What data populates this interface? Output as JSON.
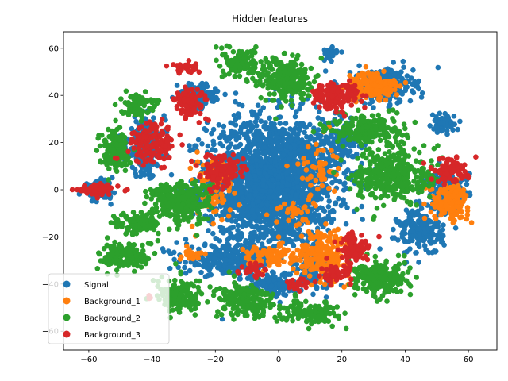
{
  "chart_data": {
    "type": "scatter",
    "title": "Hidden features",
    "xlabel": "",
    "ylabel": "",
    "xlim": [
      -68,
      69
    ],
    "ylim": [
      -68,
      67
    ],
    "xticks": [
      -60,
      -40,
      -20,
      0,
      20,
      40,
      60
    ],
    "yticks": [
      -60,
      -40,
      -20,
      0,
      20,
      40,
      60
    ],
    "grid": false,
    "legend_position": "lower-left",
    "series": [
      {
        "name": "Signal",
        "color": "#1f77b4",
        "clusters": [
          [
            -2,
            3,
            17,
            23,
            2200
          ],
          [
            33,
            44,
            8,
            6,
            280
          ],
          [
            -26,
            40,
            5,
            4,
            120
          ],
          [
            -42,
            18,
            5,
            10,
            220
          ],
          [
            -57,
            0,
            4,
            3,
            100
          ],
          [
            -15,
            -30,
            12,
            5,
            260
          ],
          [
            20,
            20,
            4,
            7,
            110
          ],
          [
            12,
            -33,
            5,
            6,
            120
          ],
          [
            -2,
            -40,
            6,
            4,
            120
          ],
          [
            45,
            -18,
            6,
            8,
            180
          ],
          [
            53,
            0,
            6,
            7,
            170
          ],
          [
            52,
            28,
            3,
            3,
            60
          ],
          [
            16,
            58,
            2,
            2,
            40
          ]
        ]
      },
      {
        "name": "Background_1",
        "color": "#ff7f0e",
        "clusters": [
          [
            30,
            44,
            7,
            5,
            170
          ],
          [
            54,
            -5,
            5,
            6,
            150
          ],
          [
            14,
            -27,
            7,
            8,
            220
          ],
          [
            -3,
            -28,
            7,
            4,
            90
          ],
          [
            -20,
            0,
            6,
            14,
            70
          ],
          [
            12,
            10,
            5,
            10,
            50
          ],
          [
            -28,
            -28,
            4,
            3,
            20
          ],
          [
            5,
            -10,
            5,
            5,
            30
          ]
        ]
      },
      {
        "name": "Background_2",
        "color": "#2ca02c",
        "clusters": [
          [
            -12,
            54,
            4,
            5,
            150
          ],
          [
            2,
            47,
            7,
            8,
            250
          ],
          [
            -45,
            36,
            4,
            4,
            90
          ],
          [
            -52,
            17,
            4,
            7,
            140
          ],
          [
            -37,
            -2,
            4,
            3,
            40
          ],
          [
            -30,
            -5,
            7,
            7,
            300
          ],
          [
            -45,
            -14,
            6,
            4,
            120
          ],
          [
            -48,
            -28,
            7,
            5,
            150
          ],
          [
            -31,
            -45,
            6,
            6,
            150
          ],
          [
            -10,
            -47,
            8,
            6,
            200
          ],
          [
            10,
            -52,
            7,
            4,
            120
          ],
          [
            32,
            -38,
            8,
            6,
            220
          ],
          [
            35,
            7,
            9,
            10,
            350
          ],
          [
            28,
            26,
            10,
            5,
            200
          ],
          [
            47,
            5,
            3,
            3,
            30
          ]
        ]
      },
      {
        "name": "Background_3",
        "color": "#d62728",
        "clusters": [
          [
            -29,
            52,
            4,
            2,
            50
          ],
          [
            -28,
            37,
            4,
            5,
            120
          ],
          [
            -40,
            20,
            6,
            7,
            170
          ],
          [
            -57,
            0,
            5,
            2,
            70
          ],
          [
            -18,
            8,
            6,
            6,
            120
          ],
          [
            18,
            40,
            6,
            5,
            150
          ],
          [
            54,
            8,
            5,
            4,
            100
          ],
          [
            24,
            -25,
            4,
            5,
            90
          ],
          [
            18,
            -36,
            4,
            3,
            60
          ],
          [
            6,
            -40,
            3,
            2,
            30
          ],
          [
            -8,
            -35,
            3,
            3,
            30
          ],
          [
            -41,
            -46,
            1,
            1,
            4
          ]
        ]
      }
    ]
  }
}
